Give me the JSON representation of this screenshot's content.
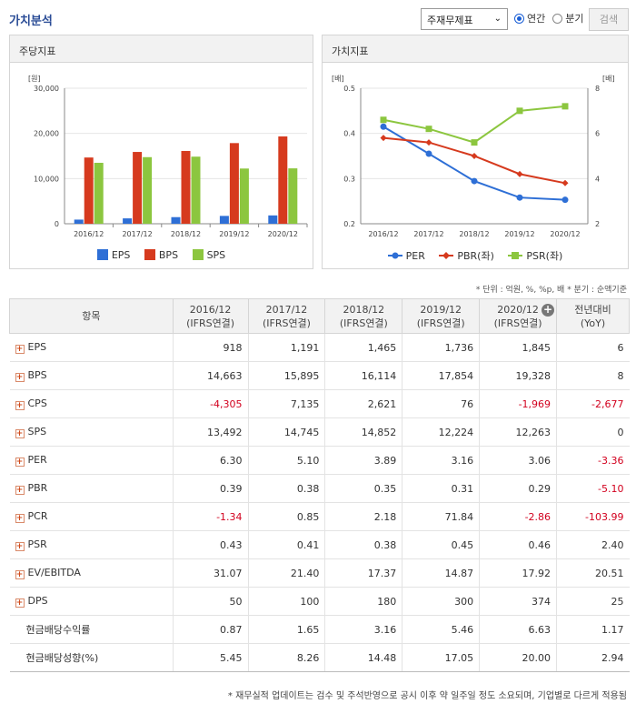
{
  "header": {
    "title": "가치분석",
    "select_value": "주재무제표",
    "radio_annual": "연간",
    "radio_quarter": "분기",
    "search_button": "검색"
  },
  "left_chart": {
    "title": "주당지표",
    "unit": "[원]",
    "y_ticks": [
      "30,000",
      "20,000",
      "10,000",
      "0"
    ],
    "legend": [
      "EPS",
      "BPS",
      "SPS"
    ]
  },
  "right_chart": {
    "title": "가치지표",
    "unit_left": "[배]",
    "unit_right": "[배]",
    "y_left_ticks": [
      "0.5",
      "0.4",
      "0.3",
      "0.2"
    ],
    "y_right_ticks": [
      "8",
      "6",
      "4",
      "2"
    ],
    "legend": [
      "PER",
      "PBR(좌)",
      "PSR(좌)"
    ]
  },
  "chart_data": [
    {
      "type": "bar",
      "title": "주당지표",
      "ylabel": "[원]",
      "ylim": [
        0,
        30000
      ],
      "categories": [
        "2016/12",
        "2017/12",
        "2018/12",
        "2019/12",
        "2020/12"
      ],
      "series": [
        {
          "name": "EPS",
          "color": "#2e6fd6",
          "values": [
            918,
            1191,
            1465,
            1736,
            1845
          ]
        },
        {
          "name": "BPS",
          "color": "#d63a1e",
          "values": [
            14663,
            15895,
            16114,
            17854,
            19328
          ]
        },
        {
          "name": "SPS",
          "color": "#8cc63f",
          "values": [
            13492,
            14745,
            14852,
            12224,
            12263
          ]
        }
      ]
    },
    {
      "type": "line",
      "title": "가치지표",
      "ylim_left": [
        0.2,
        0.5
      ],
      "ylim_right": [
        2,
        8
      ],
      "categories": [
        "2016/12",
        "2017/12",
        "2018/12",
        "2019/12",
        "2020/12"
      ],
      "series": [
        {
          "name": "PER",
          "axis": "right",
          "color": "#2e6fd6",
          "values": [
            6.3,
            5.1,
            3.89,
            3.16,
            3.06
          ]
        },
        {
          "name": "PBR(좌)",
          "axis": "left",
          "color": "#d63a1e",
          "values": [
            0.39,
            0.38,
            0.35,
            0.31,
            0.29
          ]
        },
        {
          "name": "PSR(좌)",
          "axis": "left",
          "color": "#8cc63f",
          "values": [
            0.43,
            0.41,
            0.38,
            0.45,
            0.46
          ]
        }
      ]
    }
  ],
  "unit_note": "* 단위 : 억원, %, %p, 배    * 분기 : 순액기준",
  "table": {
    "headers": [
      "항목",
      "2016/12\n(IFRS연결)",
      "2017/12\n(IFRS연결)",
      "2018/12\n(IFRS연결)",
      "2019/12\n(IFRS연결)",
      "2020/12\n(IFRS연결)",
      "전년대비\n(YoY)"
    ],
    "rows": [
      {
        "label": "EPS",
        "expand": true,
        "values": [
          "918",
          "1,191",
          "1,465",
          "1,736",
          "1,845",
          "6"
        ]
      },
      {
        "label": "BPS",
        "expand": true,
        "values": [
          "14,663",
          "15,895",
          "16,114",
          "17,854",
          "19,328",
          "8"
        ]
      },
      {
        "label": "CPS",
        "expand": true,
        "values": [
          "-4,305",
          "7,135",
          "2,621",
          "76",
          "-1,969",
          "-2,677"
        ]
      },
      {
        "label": "SPS",
        "expand": true,
        "values": [
          "13,492",
          "14,745",
          "14,852",
          "12,224",
          "12,263",
          "0"
        ]
      },
      {
        "label": "PER",
        "expand": true,
        "values": [
          "6.30",
          "5.10",
          "3.89",
          "3.16",
          "3.06",
          "-3.36"
        ]
      },
      {
        "label": "PBR",
        "expand": true,
        "values": [
          "0.39",
          "0.38",
          "0.35",
          "0.31",
          "0.29",
          "-5.10"
        ]
      },
      {
        "label": "PCR",
        "expand": true,
        "values": [
          "-1.34",
          "0.85",
          "2.18",
          "71.84",
          "-2.86",
          "-103.99"
        ]
      },
      {
        "label": "PSR",
        "expand": true,
        "values": [
          "0.43",
          "0.41",
          "0.38",
          "0.45",
          "0.46",
          "2.40"
        ]
      },
      {
        "label": "EV/EBITDA",
        "expand": true,
        "values": [
          "31.07",
          "21.40",
          "17.37",
          "14.87",
          "17.92",
          "20.51"
        ]
      },
      {
        "label": "DPS",
        "expand": true,
        "values": [
          "50",
          "100",
          "180",
          "300",
          "374",
          "25"
        ]
      },
      {
        "label": "현금배당수익률",
        "expand": false,
        "values": [
          "0.87",
          "1.65",
          "3.16",
          "5.46",
          "6.63",
          "1.17"
        ]
      },
      {
        "label": "현금배당성향(%)",
        "expand": false,
        "values": [
          "5.45",
          "8.26",
          "14.48",
          "17.05",
          "20.00",
          "2.94"
        ]
      }
    ]
  },
  "footer_note": "* 재무실적 업데이트는 검수 및 주석반영으로 공시 이후 약 일주일 정도 소요되며, 기업별로 다르게 적용됨"
}
